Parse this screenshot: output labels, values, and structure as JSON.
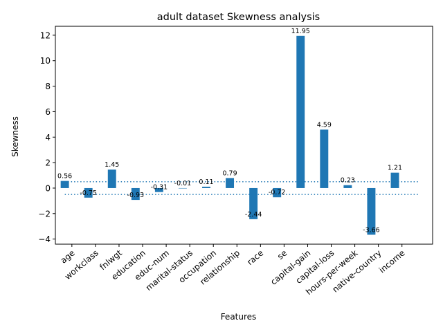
{
  "chart_data": {
    "type": "bar",
    "title": "adult dataset Skewness analysis",
    "xlabel": "Features",
    "ylabel": "Skewness",
    "categories": [
      "age",
      "workclass",
      "fnlwgt",
      "education",
      "educ-num",
      "marital-status",
      "occupation",
      "relationship",
      "race",
      "se",
      "capital-gain",
      "capital-loss",
      "hours-per-week",
      "native-country",
      "income"
    ],
    "bars": [
      {
        "value": 0.56,
        "label": "0.56",
        "xpos": 0.0
      },
      {
        "value": -0.75,
        "label": "-0.75",
        "xpos": 1.0
      },
      {
        "value": 1.45,
        "label": "1.45",
        "xpos": 2.0
      },
      {
        "value": -0.93,
        "label": "-0.93",
        "xpos": 3.0
      },
      {
        "value": -0.31,
        "label": "-0.31",
        "xpos": 4.0
      },
      {
        "value": -0.01,
        "label": "-0.01",
        "xpos": 5.0
      },
      {
        "value": 0.11,
        "label": "0.11",
        "xpos": 6.0
      },
      {
        "value": 0.79,
        "label": "0.79",
        "xpos": 7.0
      },
      {
        "value": -2.44,
        "label": "-2.44",
        "xpos": 8.0
      },
      {
        "value": -0.72,
        "label": "-0.72",
        "xpos": 9.0
      },
      {
        "value": 11.95,
        "label": "11.95",
        "xpos": 10.0
      },
      {
        "value": 4.59,
        "label": "4.59",
        "xpos": 11.0
      },
      {
        "value": 0.23,
        "label": "0.23",
        "xpos": 12.0
      },
      {
        "value": -3.66,
        "label": "-3.66",
        "xpos": 13.0
      },
      {
        "value": 1.21,
        "label": "1.21",
        "xpos": 14.0
      }
    ],
    "xtick_positions": [
      0.3,
      1.3,
      2.3,
      3.3,
      4.3,
      5.3,
      6.3,
      7.3,
      8.3,
      9.3,
      10.3,
      11.3,
      12.3,
      13.3,
      14.3
    ],
    "reference_lines": [
      {
        "y": 0.5,
        "style": "dotted",
        "xrange": [
          0.0,
          15.0
        ]
      },
      {
        "y": -0.5,
        "style": "dotted",
        "xrange": [
          0.0,
          15.0
        ]
      }
    ],
    "xlim": [
      -0.4,
      15.6
    ],
    "ylim": [
      -4.4,
      12.7
    ],
    "yticks": [
      -4,
      -2,
      0,
      2,
      4,
      6,
      8,
      10,
      12
    ],
    "bar_color": "#1f77b4",
    "grid": false,
    "legend": "none"
  }
}
